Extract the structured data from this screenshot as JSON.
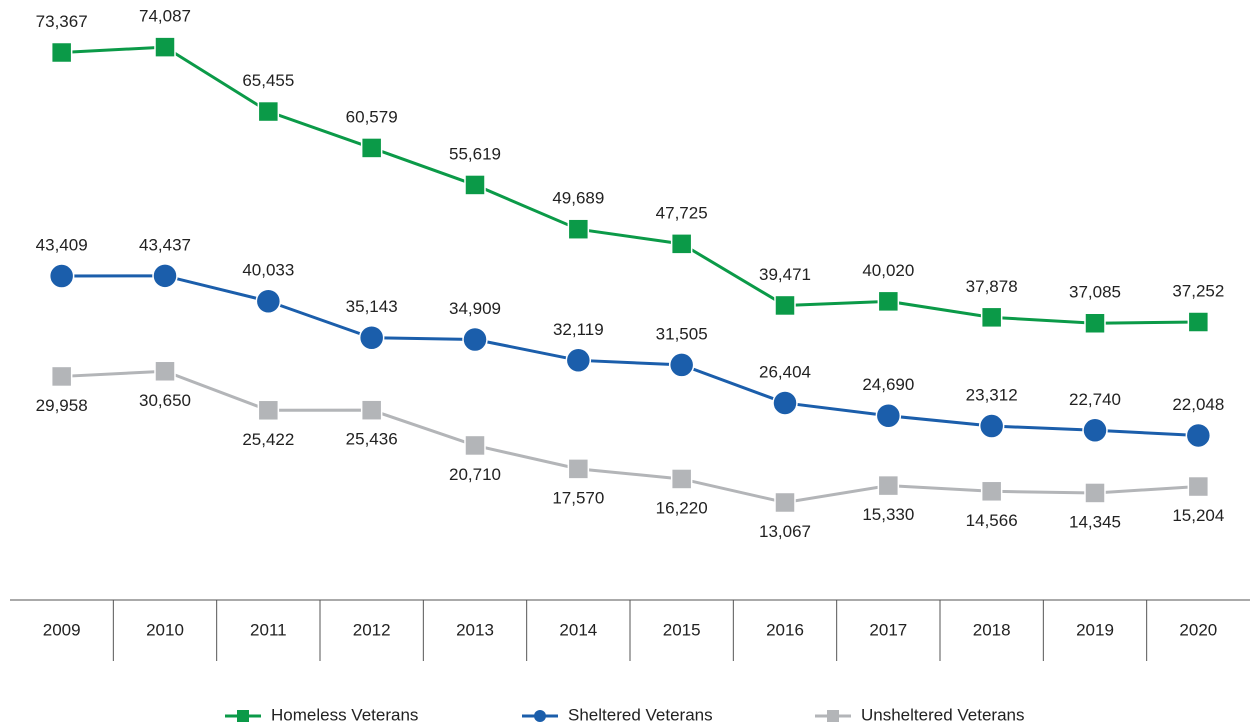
{
  "chart_data": {
    "type": "line",
    "categories": [
      "2009",
      "2010",
      "2011",
      "2012",
      "2013",
      "2014",
      "2015",
      "2016",
      "2017",
      "2018",
      "2019",
      "2020"
    ],
    "ylim": [
      0,
      80000
    ],
    "legend": "bottom",
    "series": [
      {
        "name": "Homeless Veterans",
        "color": "#0b9a48",
        "marker": "square",
        "label_position": "above",
        "values": [
          73367,
          74087,
          65455,
          60579,
          55619,
          49689,
          47725,
          39471,
          40020,
          37878,
          37085,
          37252
        ],
        "value_labels": [
          "73,367",
          "74,087",
          "65,455",
          "60,579",
          "55,619",
          "49,689",
          "47,725",
          "39,471",
          "40,020",
          "37,878",
          "37,085",
          "37,252"
        ]
      },
      {
        "name": "Sheltered Veterans",
        "color": "#1b5eab",
        "marker": "circle",
        "label_position": "above",
        "values": [
          43409,
          43437,
          40033,
          35143,
          34909,
          32119,
          31505,
          26404,
          24690,
          23312,
          22740,
          22048
        ],
        "value_labels": [
          "43,409",
          "43,437",
          "40,033",
          "35,143",
          "34,909",
          "32,119",
          "31,505",
          "26,404",
          "24,690",
          "23,312",
          "22,740",
          "22,048"
        ]
      },
      {
        "name": "Unsheltered Veterans",
        "color": "#b3b5b8",
        "marker": "square",
        "label_position": "below",
        "values": [
          29958,
          30650,
          25422,
          25436,
          20710,
          17570,
          16220,
          13067,
          15330,
          14566,
          14345,
          15204
        ],
        "value_labels": [
          "29,958",
          "30,650",
          "25,422",
          "25,436",
          "20,710",
          "17,570",
          "16,220",
          "13,067",
          "15,330",
          "14,566",
          "14,345",
          "15,204"
        ]
      }
    ]
  }
}
